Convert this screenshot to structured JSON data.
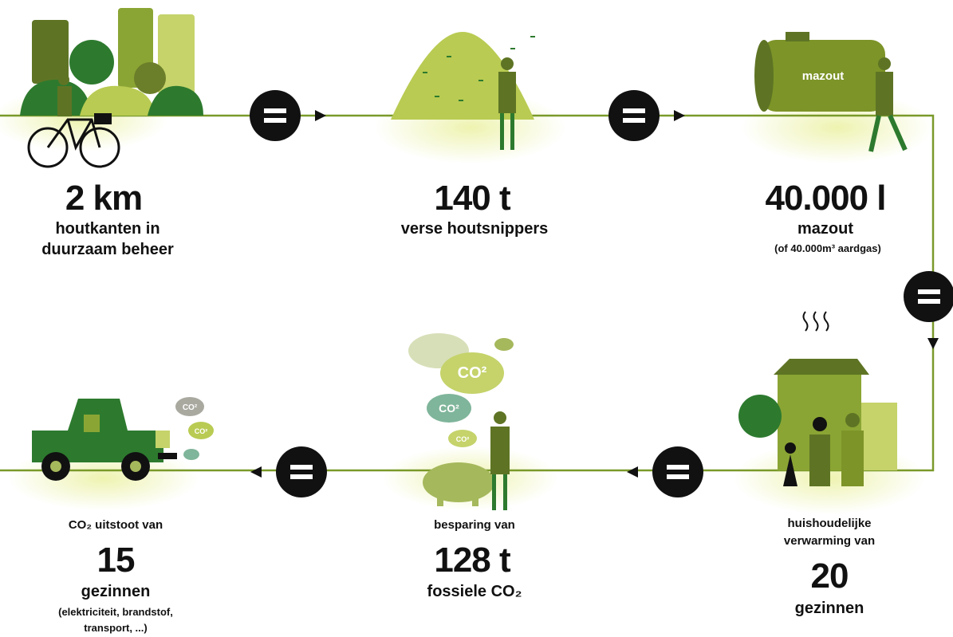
{
  "panels": [
    {
      "value": "2 km",
      "lines": [
        "houtkanten in",
        "duurzaam beheer"
      ]
    },
    {
      "value": "140 t",
      "lines": [
        "verse houtsnippers"
      ]
    },
    {
      "value": "40.000 l",
      "lines": [
        "mazout"
      ],
      "notes": [
        "(of 40.000m³ aardgas)"
      ],
      "tank_label": "mazout"
    },
    {
      "intro": [
        "huishoudelijke",
        "verwarming van"
      ],
      "value": "20",
      "lines": [
        "gezinnen"
      ]
    },
    {
      "intro": [
        "besparing van"
      ],
      "value": "128 t",
      "lines": [
        "fossiele CO₂"
      ],
      "clouds": [
        "CO²",
        "CO²",
        "CO²"
      ]
    },
    {
      "intro": [
        "CO₂ uitstoot van"
      ],
      "value": "15",
      "lines": [
        "gezinnen"
      ],
      "notes": [
        "(elektriciteit, brandstof,",
        "transport, ...)"
      ],
      "clouds": [
        "CO²",
        "CO²"
      ]
    }
  ]
}
